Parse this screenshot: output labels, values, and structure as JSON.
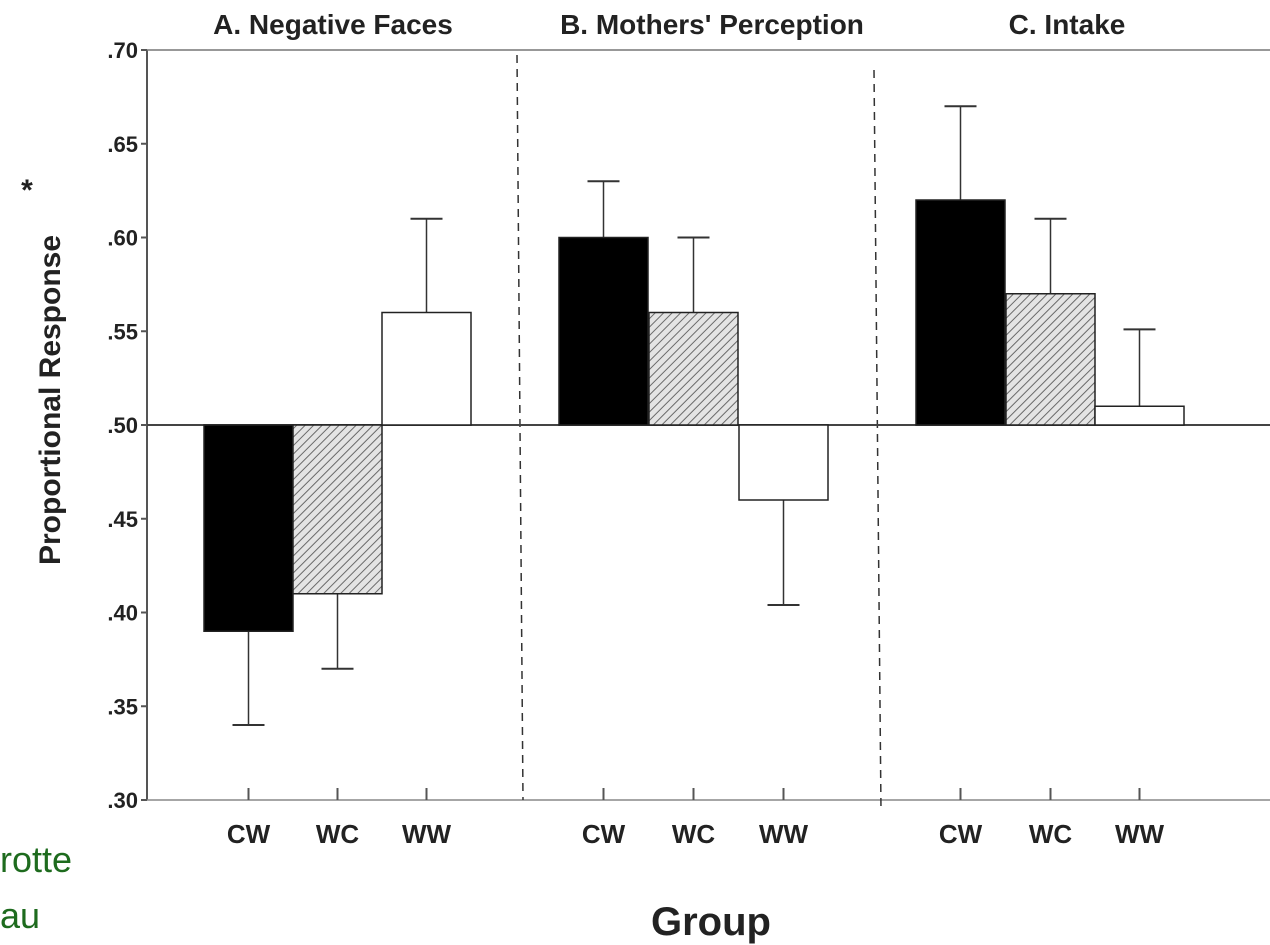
{
  "chart_data": {
    "type": "bar",
    "ylabel": "Proportional Response",
    "ylabel_mark": "*",
    "xlabel": "Group",
    "ylim": [
      0.3,
      0.7
    ],
    "baseline": 0.5,
    "y_ticks": [
      {
        "value": 0.7,
        "label": ".70"
      },
      {
        "value": 0.65,
        "label": ".65"
      },
      {
        "value": 0.6,
        "label": ".60"
      },
      {
        "value": 0.55,
        "label": ".55"
      },
      {
        "value": 0.5,
        "label": ".50"
      },
      {
        "value": 0.45,
        "label": ".45"
      },
      {
        "value": 0.4,
        "label": ".40"
      },
      {
        "value": 0.35,
        "label": ".35"
      },
      {
        "value": 0.3,
        "label": ".30"
      }
    ],
    "categories": [
      "CW",
      "WC",
      "WW"
    ],
    "bar_fills": {
      "CW": "solid-black",
      "WC": "diagonal-hatch",
      "WW": "white"
    },
    "panels": [
      {
        "title": "A. Negative Faces",
        "values": [
          0.39,
          0.41,
          0.56
        ],
        "error_ends": [
          0.34,
          0.37,
          0.61
        ]
      },
      {
        "title": "B. Mothers' Perception",
        "values": [
          0.6,
          0.56,
          0.46
        ],
        "error_ends": [
          0.63,
          0.6,
          0.404
        ]
      },
      {
        "title": "C.  Intake",
        "values": [
          0.62,
          0.57,
          0.51
        ],
        "error_ends": [
          0.67,
          0.61,
          0.551
        ]
      }
    ],
    "grid": false,
    "legend": "none"
  },
  "annotations": {
    "left_fragment_1": "rotte",
    "left_fragment_2": "au"
  },
  "colors": {
    "bar_black": "#000000",
    "hatch_bg": "#e4e4e4",
    "hatch_line": "#6a6a6a",
    "axis": "#555555",
    "text": "#222222",
    "green_note": "#1e6b1e"
  }
}
